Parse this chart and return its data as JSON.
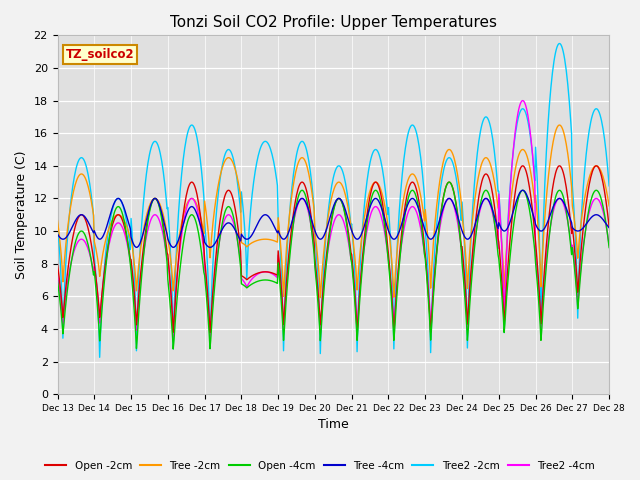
{
  "title": "Tonzi Soil CO2 Profile: Upper Temperatures",
  "xlabel": "Time",
  "ylabel": "Soil Temperature (C)",
  "ylim": [
    0,
    22
  ],
  "xlim": [
    0,
    15
  ],
  "fig_bg": "#f2f2f2",
  "plot_bg": "#e0e0e0",
  "legend_label": "TZ_soilco2",
  "series_colors": {
    "Open -2cm": "#dd0000",
    "Tree -2cm": "#ff9900",
    "Open -4cm": "#00cc00",
    "Tree -4cm": "#0000cc",
    "Tree2 -2cm": "#00ccff",
    "Tree2 -4cm": "#ff00ff"
  },
  "xtick_labels": [
    "Dec 13",
    "Dec 14",
    "Dec 15",
    "Dec 16",
    "Dec 17",
    "Dec 18",
    "Dec 19",
    "Dec 20",
    "Dec 21",
    "Dec 22",
    "Dec 23",
    "Dec 24",
    "Dec 25",
    "Dec 26",
    "Dec 27",
    "Dec 28"
  ],
  "ytick_values": [
    0,
    2,
    4,
    6,
    8,
    10,
    12,
    14,
    16,
    18,
    20,
    22
  ]
}
